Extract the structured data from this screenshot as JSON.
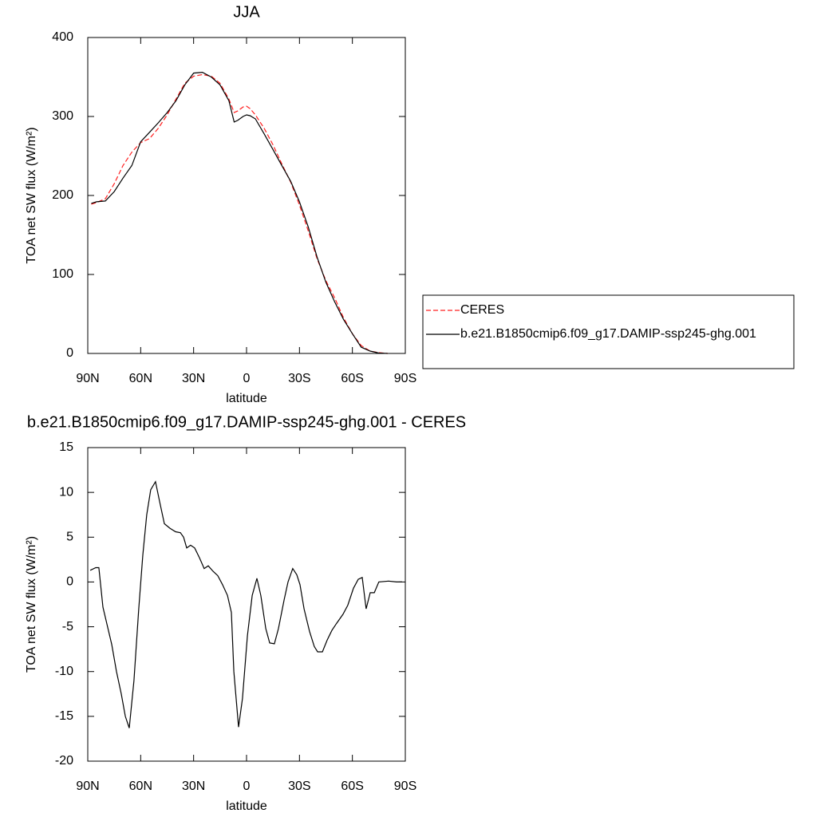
{
  "chart_data": [
    {
      "type": "line",
      "title": "JJA",
      "xlabel": "latitude",
      "ylabel": "TOA net SW flux (W/m²)",
      "xlim": [
        90,
        -90
      ],
      "xticks": [
        {
          "value": 90,
          "label": "90N"
        },
        {
          "value": 60,
          "label": "60N"
        },
        {
          "value": 30,
          "label": "30N"
        },
        0,
        {
          "value": -30,
          "label": "30S"
        },
        {
          "value": -60,
          "label": "60S"
        },
        {
          "value": -90,
          "label": "90S"
        }
      ],
      "ylim": [
        0,
        400
      ],
      "yticks": [
        0,
        100,
        200,
        300,
        400
      ],
      "x": [
        88,
        85,
        80,
        75,
        70,
        65,
        60,
        55,
        50,
        45,
        40,
        35,
        30,
        25,
        20,
        15,
        10,
        7,
        5,
        2,
        0,
        -2,
        -5,
        -10,
        -15,
        -20,
        -25,
        -30,
        -35,
        -40,
        -45,
        -50,
        -55,
        -60,
        -65,
        -70,
        -75,
        -80
      ],
      "series": [
        {
          "name": "CERES",
          "color": "#ff2020",
          "dashed": true,
          "values": [
            189,
            191,
            196,
            215,
            238,
            255,
            267,
            272,
            285,
            302,
            322,
            342,
            351,
            353,
            351,
            342,
            322,
            305,
            307,
            312,
            313,
            310,
            302,
            285,
            264,
            240,
            217,
            188,
            155,
            120,
            92,
            70,
            45,
            25,
            10,
            3,
            1,
            0
          ]
        },
        {
          "name": "b.e21.B1850cmip6.f09_g17.DAMIP-ssp245-ghg.001",
          "color": "#000000",
          "dashed": false,
          "values": [
            190,
            192,
            193,
            205,
            222,
            238,
            268,
            280,
            292,
            305,
            320,
            340,
            355,
            356,
            350,
            340,
            320,
            293,
            295,
            300,
            302,
            301,
            297,
            278,
            258,
            238,
            218,
            192,
            160,
            122,
            90,
            65,
            43,
            25,
            8,
            3,
            0.5,
            0
          ]
        }
      ],
      "legend": "right"
    },
    {
      "type": "line",
      "title": "b.e21.B1850cmip6.f09_g17.DAMIP-ssp245-ghg.001 - CERES",
      "xlabel": "latitude",
      "ylabel": "TOA net SW flux (W/m²)",
      "xlim": [
        90,
        -90
      ],
      "xticks": [
        {
          "value": 90,
          "label": "90N"
        },
        {
          "value": 60,
          "label": "60N"
        },
        {
          "value": 30,
          "label": "30N"
        },
        0,
        {
          "value": -30,
          "label": "30S"
        },
        {
          "value": -60,
          "label": "60S"
        },
        {
          "value": -90,
          "label": "90S"
        }
      ],
      "ylim": [
        -20,
        15
      ],
      "yticks": [
        -20,
        -15,
        -10,
        -5,
        0,
        5,
        10,
        15
      ],
      "color": "#000000",
      "x": [
        88.6,
        85.5,
        83.7,
        81.4,
        76.4,
        73.7,
        71,
        68.7,
        66.5,
        63.8,
        61.1,
        58.8,
        56.6,
        54.3,
        51.6,
        49.3,
        46.6,
        43.4,
        40.2,
        37.5,
        35.7,
        33.9,
        31.7,
        29.4,
        26.7,
        24,
        21.7,
        19,
        16.3,
        13.6,
        10.8,
        8.6,
        7.2,
        4.5,
        2.3,
        -0.5,
        -3.2,
        -5.9,
        -8.1,
        -10.9,
        -13.1,
        -15.8,
        -18.1,
        -21.3,
        -23.5,
        -26.2,
        -28.5,
        -30.3,
        -32.6,
        -35.7,
        -38.4,
        -40.3,
        -43,
        -45.7,
        -48.4,
        -51.1,
        -54.7,
        -57.4,
        -60.6,
        -63.3,
        -65.6,
        -67.8,
        -70.1,
        -72.4,
        -75,
        -80.5,
        -85,
        -88.2
      ],
      "values": [
        1.3,
        1.6,
        1.6,
        -2.8,
        -7,
        -10,
        -12.5,
        -15,
        -16.3,
        -11,
        -3,
        3,
        7.5,
        10.3,
        11.2,
        9,
        6.5,
        6,
        5.6,
        5.5,
        5,
        3.8,
        4.1,
        3.8,
        2.7,
        1.5,
        1.8,
        1.2,
        0.7,
        -0.3,
        -1.5,
        -3.4,
        -10,
        -16.2,
        -13,
        -6,
        -1.5,
        0.4,
        -1.5,
        -5.2,
        -6.8,
        -6.9,
        -5.2,
        -2,
        0,
        1.5,
        0.8,
        -0.3,
        -3,
        -5.5,
        -7.2,
        -7.8,
        -7.8,
        -6.5,
        -5.4,
        -4.6,
        -3.6,
        -2.6,
        -0.7,
        0.3,
        0.5,
        -3,
        -1.2,
        -1.2,
        0,
        0.1,
        0,
        0
      ]
    }
  ]
}
